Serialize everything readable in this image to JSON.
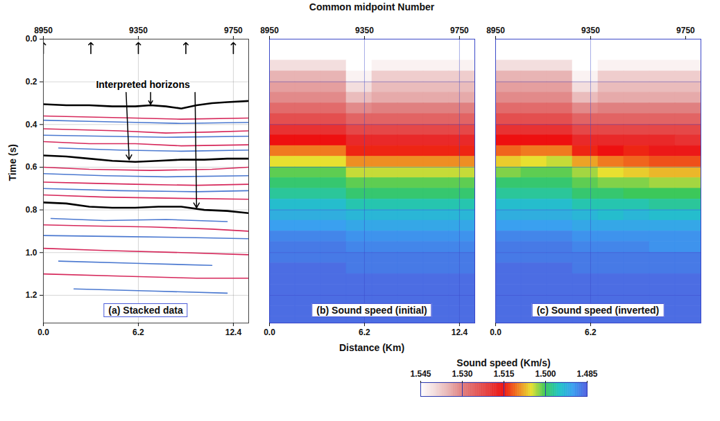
{
  "chart_data": [
    {
      "type": "seismic",
      "title": "(a) Stacked data",
      "xlim": [
        0,
        13.4
      ],
      "xticks": [
        {
          "value": 0,
          "label": "0.0"
        },
        6.2,
        12.4
      ],
      "x2lim": [
        8950,
        9814.5
      ],
      "x2ticks": [
        8950,
        9350,
        9750
      ],
      "ylim": [
        0,
        1.33
      ],
      "yticks": [
        {
          "value": 0,
          "label": "0.0"
        },
        0.2,
        0.4,
        0.6,
        0.8,
        {
          "value": 1,
          "label": "1.0"
        },
        1.2
      ],
      "ylabel": "Time (s)",
      "grid": true,
      "cmp_markers": [
        8950,
        9150,
        9350,
        9550,
        9750
      ],
      "horizons": {
        "color": "#000000",
        "lines": [
          {
            "x": [
              0,
              1.5,
              3,
              4.5,
              6,
              7,
              8,
              9,
              10,
              11,
              12,
              13.4
            ],
            "values": [
              0.305,
              0.31,
              0.31,
              0.315,
              0.315,
              0.31,
              0.315,
              0.325,
              0.31,
              0.3,
              0.295,
              0.29
            ]
          },
          {
            "x": [
              0,
              1.5,
              3,
              4.5,
              6,
              7.5,
              9,
              10.5,
              12,
              13.4
            ],
            "values": [
              0.545,
              0.55,
              0.56,
              0.57,
              0.575,
              0.57,
              0.565,
              0.565,
              0.56,
              0.56
            ]
          },
          {
            "x": [
              0,
              1.5,
              3,
              4.5,
              6,
              7.5,
              9,
              10.5,
              12,
              13.4
            ],
            "values": [
              0.765,
              0.77,
              0.785,
              0.79,
              0.79,
              0.785,
              0.785,
              0.8,
              0.805,
              0.815
            ]
          }
        ]
      },
      "reflectors": [
        {
          "color": "#d6275a",
          "x": [
            0,
            3,
            6,
            9,
            13.4
          ],
          "values": [
            0.36,
            0.365,
            0.37,
            0.375,
            0.37
          ]
        },
        {
          "color": "#4a78d0",
          "x": [
            0,
            3,
            6,
            9,
            13.4
          ],
          "values": [
            0.38,
            0.385,
            0.39,
            0.395,
            0.39
          ]
        },
        {
          "color": "#d6275a",
          "x": [
            0,
            2.5,
            5,
            8,
            11,
            13.4
          ],
          "values": [
            0.42,
            0.425,
            0.43,
            0.44,
            0.435,
            0.43
          ]
        },
        {
          "color": "#4a78d0",
          "x": [
            0,
            4,
            8,
            13.4
          ],
          "values": [
            0.45,
            0.455,
            0.46,
            0.455
          ]
        },
        {
          "color": "#d6275a",
          "x": [
            0,
            3,
            6,
            9,
            13.4
          ],
          "values": [
            0.48,
            0.49,
            0.49,
            0.5,
            0.495
          ]
        },
        {
          "color": "#4a78d0",
          "x": [
            1,
            5,
            9,
            13.4
          ],
          "values": [
            0.51,
            0.52,
            0.525,
            0.52
          ]
        },
        {
          "color": "#d6275a",
          "x": [
            0,
            3,
            7,
            11,
            13.4
          ],
          "values": [
            0.6,
            0.61,
            0.615,
            0.61,
            0.6
          ]
        },
        {
          "color": "#4a78d0",
          "x": [
            0,
            4,
            8,
            13.4
          ],
          "values": [
            0.63,
            0.64,
            0.645,
            0.64
          ]
        },
        {
          "color": "#d6275a",
          "x": [
            0,
            3,
            6,
            10,
            13.4
          ],
          "values": [
            0.67,
            0.675,
            0.68,
            0.685,
            0.68
          ]
        },
        {
          "color": "#4a78d0",
          "x": [
            0,
            5,
            10,
            13.4
          ],
          "values": [
            0.7,
            0.71,
            0.715,
            0.71
          ]
        },
        {
          "color": "#d6275a",
          "x": [
            0,
            4,
            8,
            13.4
          ],
          "values": [
            0.73,
            0.74,
            0.745,
            0.75
          ]
        },
        {
          "color": "#4a78d0",
          "x": [
            0.5,
            4,
            8,
            12
          ],
          "values": [
            0.84,
            0.85,
            0.845,
            0.855
          ]
        },
        {
          "color": "#d6275a",
          "x": [
            0,
            3,
            7,
            11,
            13.4
          ],
          "values": [
            0.87,
            0.875,
            0.88,
            0.89,
            0.9
          ]
        },
        {
          "color": "#4a78d0",
          "x": [
            0,
            5,
            10,
            13.4
          ],
          "values": [
            0.92,
            0.925,
            0.93,
            0.935
          ]
        },
        {
          "color": "#d6275a",
          "x": [
            0,
            4,
            9,
            13.4
          ],
          "values": [
            0.98,
            0.99,
            1.0,
            1.01
          ]
        },
        {
          "color": "#4a78d0",
          "x": [
            1,
            6,
            11
          ],
          "values": [
            1.04,
            1.05,
            1.06
          ]
        },
        {
          "color": "#d6275a",
          "x": [
            0,
            5,
            10,
            13.4
          ],
          "values": [
            1.1,
            1.11,
            1.12,
            1.12
          ]
        },
        {
          "color": "#4a78d0",
          "x": [
            2,
            7,
            12
          ],
          "values": [
            1.17,
            1.18,
            1.19
          ]
        }
      ],
      "annotation": {
        "text": "Interpreted horizons",
        "x": 6.5,
        "y": 0.215,
        "arrows": [
          {
            "x1": 7.0,
            "y1": 0.25,
            "x2": 7.0,
            "y2": 0.305
          },
          {
            "x1": 5.4,
            "y1": 0.25,
            "x2": 5.6,
            "y2": 0.565
          },
          {
            "x1": 9.9,
            "y1": 0.25,
            "x2": 10.0,
            "y2": 0.79
          }
        ]
      }
    },
    {
      "type": "heatmap",
      "title": "(b) Sound speed (initial)",
      "xlim": [
        0,
        13.4
      ],
      "xticks": [
        {
          "value": 0,
          "label": "0.0"
        },
        6.2,
        12.4
      ],
      "x2lim": [
        8950,
        9814.5
      ],
      "x2ticks": [
        8950,
        9350,
        9750
      ],
      "x2label": "Common midpoint Number",
      "xlabel": "Distance (Km)",
      "ylim": [
        0,
        1.33
      ],
      "yticks": [
        0,
        0.2,
        0.4,
        0.6,
        0.8,
        1,
        1.2
      ],
      "tick_labels": "x",
      "grid": true,
      "x_edges": [
        0,
        1.675,
        3.35,
        5.025,
        6.7,
        8.375,
        10.05,
        11.725,
        13.4
      ],
      "y_edges": [
        0,
        0.05,
        0.1,
        0.15,
        0.2,
        0.25,
        0.3,
        0.35,
        0.4,
        0.45,
        0.5,
        0.55,
        0.6,
        0.65,
        0.7,
        0.75,
        0.8,
        0.85,
        0.9,
        0.95,
        1.0,
        1.05,
        1.1,
        1.15,
        1.2,
        1.25,
        1.3,
        1.35
      ],
      "cells": [
        [
          1.545,
          1.545,
          1.545,
          1.545,
          1.545,
          1.545,
          1.545,
          1.545
        ],
        [
          1.545,
          1.545,
          1.545,
          1.545,
          1.545,
          1.545,
          1.545,
          1.545
        ],
        [
          1.54,
          1.54,
          1.54,
          1.545,
          1.543,
          1.543,
          1.543,
          1.543
        ],
        [
          1.535,
          1.535,
          1.535,
          1.543,
          1.538,
          1.538,
          1.538,
          1.538
        ],
        [
          1.533,
          1.533,
          1.533,
          1.54,
          1.536,
          1.536,
          1.536,
          1.536
        ],
        [
          1.531,
          1.531,
          1.531,
          1.536,
          1.534,
          1.534,
          1.534,
          1.534
        ],
        [
          1.527,
          1.527,
          1.527,
          1.531,
          1.53,
          1.53,
          1.53,
          1.53
        ],
        [
          1.523,
          1.523,
          1.523,
          1.526,
          1.526,
          1.526,
          1.526,
          1.526
        ],
        [
          1.519,
          1.519,
          1.519,
          1.522,
          1.522,
          1.522,
          1.522,
          1.522
        ],
        [
          1.515,
          1.515,
          1.515,
          1.518,
          1.518,
          1.518,
          1.518,
          1.518
        ],
        [
          1.51,
          1.51,
          1.51,
          1.514,
          1.514,
          1.514,
          1.514,
          1.514
        ],
        [
          1.505,
          1.505,
          1.505,
          1.509,
          1.509,
          1.509,
          1.509,
          1.509
        ],
        [
          1.501,
          1.501,
          1.501,
          1.504,
          1.504,
          1.504,
          1.504,
          1.504
        ],
        [
          1.499,
          1.499,
          1.499,
          1.501,
          1.501,
          1.501,
          1.501,
          1.501
        ],
        [
          1.497,
          1.497,
          1.497,
          1.499,
          1.499,
          1.499,
          1.499,
          1.499
        ],
        [
          1.494,
          1.494,
          1.494,
          1.496,
          1.496,
          1.496,
          1.496,
          1.496
        ],
        [
          1.492,
          1.492,
          1.492,
          1.493,
          1.493,
          1.493,
          1.493,
          1.493
        ],
        [
          1.49,
          1.49,
          1.49,
          1.491,
          1.491,
          1.491,
          1.491,
          1.491
        ],
        [
          1.488,
          1.488,
          1.488,
          1.489,
          1.489,
          1.489,
          1.489,
          1.489
        ],
        [
          1.487,
          1.487,
          1.487,
          1.488,
          1.488,
          1.488,
          1.488,
          1.488
        ],
        [
          1.487,
          1.487,
          1.487,
          1.487,
          1.487,
          1.487,
          1.487,
          1.487
        ],
        [
          1.486,
          1.486,
          1.486,
          1.487,
          1.487,
          1.487,
          1.487,
          1.487
        ],
        [
          1.486,
          1.486,
          1.486,
          1.486,
          1.486,
          1.486,
          1.486,
          1.486
        ],
        [
          1.486,
          1.486,
          1.486,
          1.486,
          1.486,
          1.486,
          1.486,
          1.486
        ],
        [
          1.486,
          1.486,
          1.486,
          1.486,
          1.486,
          1.486,
          1.486,
          1.486
        ],
        [
          1.486,
          1.486,
          1.486,
          1.486,
          1.486,
          1.486,
          1.486,
          1.486
        ],
        [
          1.486,
          1.486,
          1.486,
          1.486,
          1.486,
          1.486,
          1.486,
          1.486
        ]
      ]
    },
    {
      "type": "heatmap",
      "title": "(c) Sound speed (inverted)",
      "xlim": [
        0,
        13.4
      ],
      "xticks": [
        {
          "value": 0,
          "label": "0.0"
        },
        6.2
      ],
      "x2lim": [
        8950,
        9814.5
      ],
      "x2ticks": [
        8950,
        9350,
        9750
      ],
      "ylim": [
        0,
        1.33
      ],
      "yticks": [
        0,
        0.2,
        0.4,
        0.6,
        0.8,
        1,
        1.2
      ],
      "tick_labels": "x",
      "grid": true,
      "x_edges": [
        0,
        1.675,
        3.35,
        5.025,
        6.7,
        8.375,
        10.05,
        11.725,
        13.4
      ],
      "y_edges": [
        0,
        0.05,
        0.1,
        0.15,
        0.2,
        0.25,
        0.3,
        0.35,
        0.4,
        0.45,
        0.5,
        0.55,
        0.6,
        0.65,
        0.7,
        0.75,
        0.8,
        0.85,
        0.9,
        0.95,
        1.0,
        1.05,
        1.1,
        1.15,
        1.2,
        1.25,
        1.3,
        1.35
      ],
      "cells": [
        [
          1.545,
          1.545,
          1.545,
          1.545,
          1.545,
          1.545,
          1.545,
          1.545
        ],
        [
          1.545,
          1.545,
          1.545,
          1.545,
          1.545,
          1.545,
          1.545,
          1.545
        ],
        [
          1.54,
          1.54,
          1.54,
          1.545,
          1.543,
          1.543,
          1.543,
          1.543
        ],
        [
          1.535,
          1.535,
          1.535,
          1.543,
          1.538,
          1.538,
          1.538,
          1.538
        ],
        [
          1.533,
          1.533,
          1.533,
          1.54,
          1.536,
          1.536,
          1.536,
          1.536
        ],
        [
          1.531,
          1.531,
          1.531,
          1.536,
          1.534,
          1.534,
          1.534,
          1.534
        ],
        [
          1.527,
          1.527,
          1.527,
          1.531,
          1.53,
          1.53,
          1.53,
          1.53
        ],
        [
          1.523,
          1.523,
          1.523,
          1.526,
          1.526,
          1.526,
          1.526,
          1.526
        ],
        [
          1.519,
          1.519,
          1.519,
          1.522,
          1.522,
          1.522,
          1.522,
          1.522
        ],
        [
          1.515,
          1.515,
          1.515,
          1.518,
          1.518,
          1.518,
          1.518,
          1.519
        ],
        [
          1.511,
          1.51,
          1.51,
          1.514,
          1.515,
          1.514,
          1.516,
          1.516
        ],
        [
          1.506,
          1.505,
          1.504,
          1.508,
          1.51,
          1.511,
          1.512,
          1.512
        ],
        [
          1.502,
          1.501,
          1.501,
          1.503,
          1.505,
          1.506,
          1.507,
          1.507
        ],
        [
          1.499,
          1.499,
          1.499,
          1.501,
          1.502,
          1.502,
          1.503,
          1.503
        ],
        [
          1.497,
          1.497,
          1.497,
          1.499,
          1.499,
          1.5,
          1.5,
          1.5
        ],
        [
          1.494,
          1.494,
          1.494,
          1.496,
          1.496,
          1.496,
          1.497,
          1.497
        ],
        [
          1.492,
          1.492,
          1.492,
          1.493,
          1.494,
          1.493,
          1.494,
          1.494
        ],
        [
          1.49,
          1.49,
          1.49,
          1.491,
          1.491,
          1.491,
          1.491,
          1.491
        ],
        [
          1.488,
          1.488,
          1.488,
          1.489,
          1.489,
          1.489,
          1.489,
          1.489
        ],
        [
          1.487,
          1.487,
          1.487,
          1.488,
          1.488,
          1.488,
          1.489,
          1.489
        ],
        [
          1.487,
          1.487,
          1.487,
          1.487,
          1.487,
          1.487,
          1.487,
          1.487
        ],
        [
          1.486,
          1.486,
          1.486,
          1.487,
          1.487,
          1.487,
          1.487,
          1.487
        ],
        [
          1.486,
          1.486,
          1.486,
          1.486,
          1.486,
          1.486,
          1.486,
          1.486
        ],
        [
          1.486,
          1.486,
          1.486,
          1.486,
          1.486,
          1.486,
          1.486,
          1.486
        ],
        [
          1.486,
          1.486,
          1.486,
          1.486,
          1.486,
          1.486,
          1.486,
          1.486
        ],
        [
          1.486,
          1.486,
          1.486,
          1.486,
          1.486,
          1.486,
          1.486,
          1.486
        ],
        [
          1.486,
          1.486,
          1.486,
          1.486,
          1.486,
          1.486,
          1.486,
          1.486
        ]
      ]
    }
  ],
  "colorbar": {
    "label": "Sound speed (Km/s)",
    "range": [
      1.545,
      1.485
    ],
    "ticks": [
      1.545,
      {
        "value": 1.53,
        "label": "1.530"
      },
      1.515,
      {
        "value": 1.5,
        "label": "1.500"
      },
      1.485
    ],
    "stops": [
      1.485,
      1.49,
      1.495,
      1.5,
      1.505,
      1.51,
      1.515,
      1.52,
      1.53,
      1.535,
      1.54,
      1.545
    ],
    "colors": [
      "#5060e0",
      "#3aa0f0",
      "#20c4c4",
      "#3cc85a",
      "#e8e030",
      "#f07a20",
      "#ee1010",
      "#e63a3a",
      "#e08080",
      "#e8b4b4",
      "#f3dede",
      "#ffffff"
    ]
  }
}
